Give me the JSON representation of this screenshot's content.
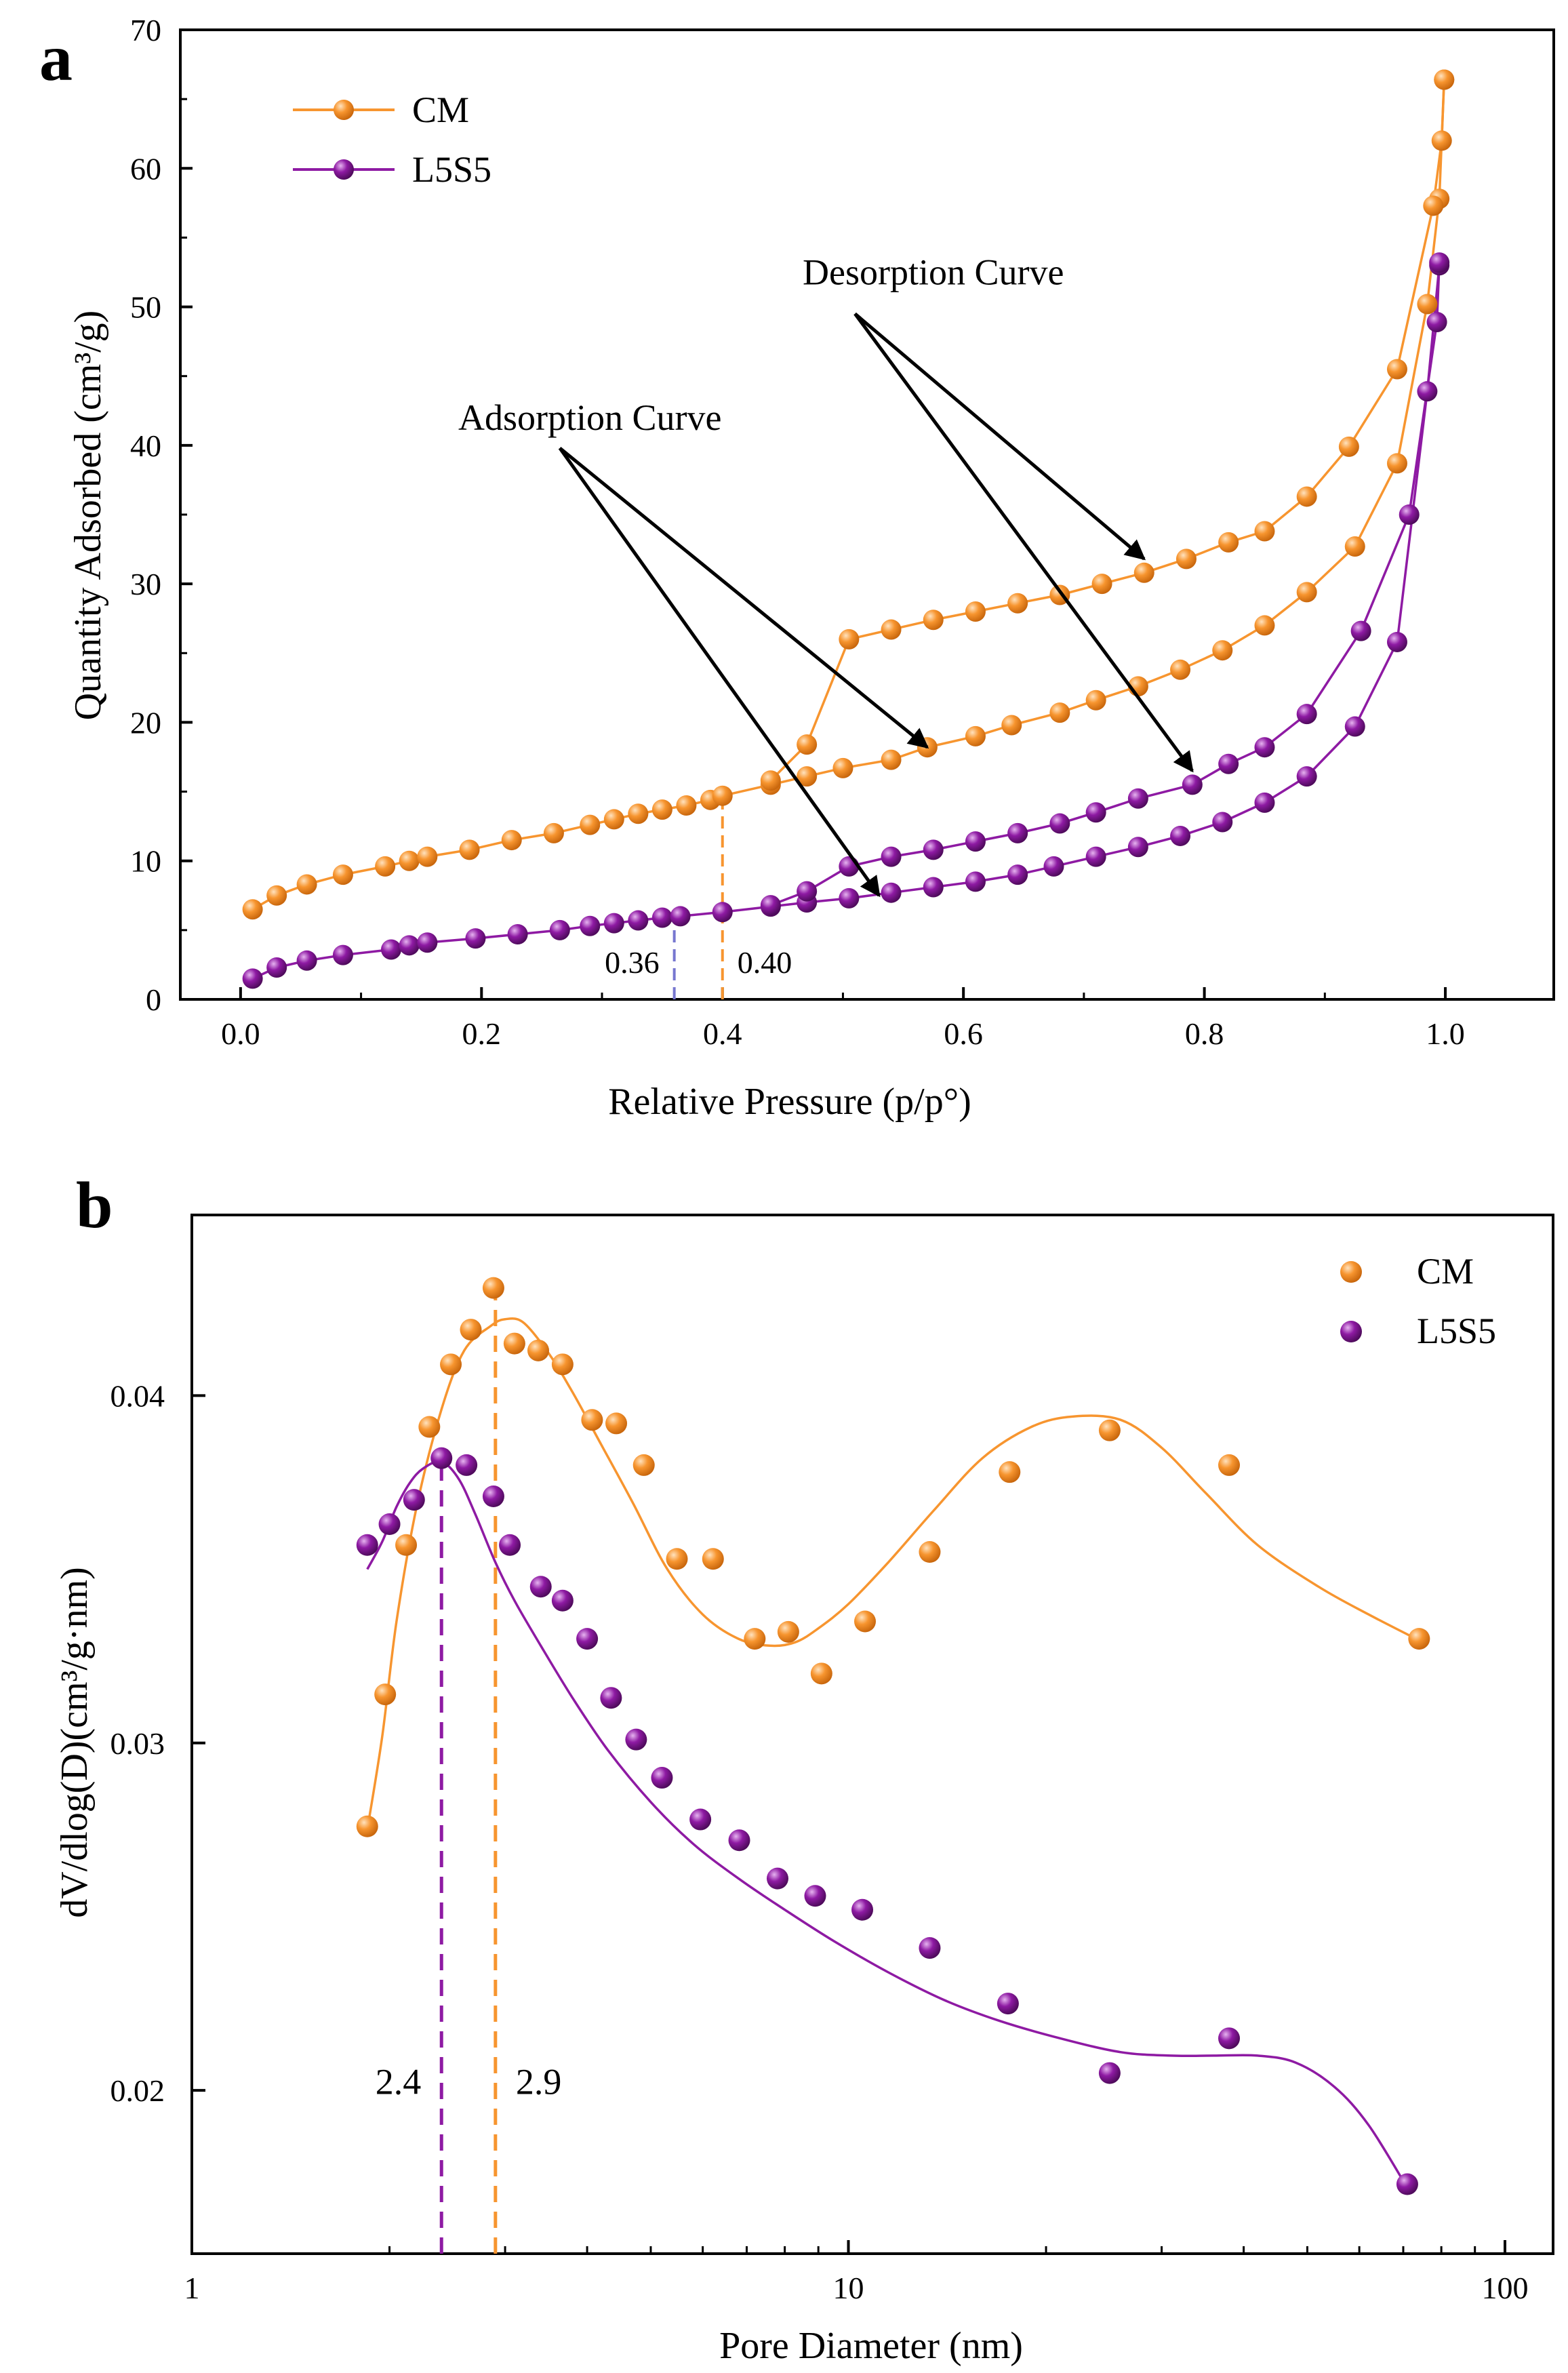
{
  "colors": {
    "CM": "#F7952F",
    "L5S5": "#8E1AA3",
    "blue_marker": "#7777D0",
    "axis": "#000000"
  },
  "chart_data": [
    {
      "panel": "a",
      "type": "line",
      "xlabel": "Relative Pressure (p/p°)",
      "ylabel": "Quantity Adsorbed (cm³/g)",
      "xlim": [
        -0.05,
        1.09
      ],
      "ylim": [
        0,
        70
      ],
      "xticks": [
        0.0,
        0.2,
        0.4,
        0.6,
        0.8,
        1.0
      ],
      "xtick_labels": [
        "0.0",
        "0.2",
        "0.4",
        "0.6",
        "0.8",
        "1.0"
      ],
      "yticks": [
        0,
        10,
        20,
        30,
        40,
        50,
        60,
        70
      ],
      "ytick_labels": [
        "0",
        "10",
        "20",
        "30",
        "40",
        "50",
        "60",
        "70"
      ],
      "legend": {
        "position": "top-left",
        "entries": [
          "CM",
          "L5S5"
        ]
      },
      "series": [
        {
          "name": "CM",
          "part": "adsorption",
          "x": [
            0.01,
            0.03,
            0.055,
            0.085,
            0.12,
            0.14,
            0.155,
            0.19,
            0.225,
            0.26,
            0.29,
            0.31,
            0.33,
            0.35,
            0.37,
            0.39,
            0.4,
            0.44,
            0.47,
            0.5,
            0.54,
            0.57,
            0.61,
            0.64,
            0.68,
            0.71,
            0.745,
            0.78,
            0.815,
            0.85,
            0.885,
            0.925,
            0.96,
            0.985,
            0.995,
            0.999
          ],
          "y": [
            6.5,
            7.5,
            8.3,
            9.0,
            9.6,
            10.0,
            10.3,
            10.8,
            11.5,
            12.0,
            12.6,
            13.0,
            13.4,
            13.7,
            14.0,
            14.4,
            14.7,
            15.5,
            16.1,
            16.7,
            17.3,
            18.2,
            19.0,
            19.8,
            20.7,
            21.6,
            22.6,
            23.8,
            25.2,
            27.0,
            29.4,
            32.7,
            38.7,
            50.2,
            57.8,
            66.4
          ]
        },
        {
          "name": "CM",
          "part": "desorption",
          "x": [
            0.999,
            0.997,
            0.99,
            0.96,
            0.92,
            0.885,
            0.85,
            0.82,
            0.785,
            0.75,
            0.715,
            0.68,
            0.645,
            0.61,
            0.575,
            0.54,
            0.505,
            0.47,
            0.44
          ],
          "y": [
            66.4,
            62.0,
            57.3,
            45.5,
            39.9,
            36.3,
            33.8,
            33.0,
            31.8,
            30.8,
            30.0,
            29.2,
            28.6,
            28.0,
            27.4,
            26.7,
            26.0,
            18.4,
            15.8
          ]
        },
        {
          "name": "L5S5",
          "part": "adsorption",
          "x": [
            0.01,
            0.03,
            0.055,
            0.085,
            0.125,
            0.14,
            0.155,
            0.195,
            0.23,
            0.265,
            0.29,
            0.31,
            0.33,
            0.35,
            0.365,
            0.4,
            0.44,
            0.47,
            0.505,
            0.54,
            0.575,
            0.61,
            0.645,
            0.675,
            0.71,
            0.745,
            0.78,
            0.815,
            0.85,
            0.885,
            0.925,
            0.96,
            0.985,
            0.995
          ],
          "y": [
            1.5,
            2.3,
            2.8,
            3.2,
            3.6,
            3.9,
            4.1,
            4.4,
            4.7,
            5.0,
            5.3,
            5.5,
            5.7,
            5.9,
            6.0,
            6.3,
            6.7,
            7.0,
            7.3,
            7.7,
            8.1,
            8.5,
            9.0,
            9.6,
            10.3,
            11.0,
            11.8,
            12.8,
            14.2,
            16.1,
            19.7,
            25.8,
            43.9,
            53.0
          ]
        },
        {
          "name": "L5S5",
          "part": "desorption",
          "x": [
            0.995,
            0.993,
            0.97,
            0.93,
            0.885,
            0.85,
            0.82,
            0.79,
            0.745,
            0.71,
            0.68,
            0.645,
            0.61,
            0.575,
            0.54,
            0.505,
            0.47,
            0.44
          ],
          "y": [
            53.2,
            48.9,
            35.0,
            26.6,
            20.6,
            18.2,
            17.0,
            15.5,
            14.5,
            13.5,
            12.7,
            12.0,
            11.4,
            10.8,
            10.3,
            9.6,
            7.8,
            6.8
          ]
        }
      ],
      "annotations": [
        {
          "text": "Desorption Curve",
          "x": 0.575,
          "y": 52.5
        },
        {
          "text": "Adsorption Curve",
          "x": 0.29,
          "y": 42.0
        }
      ],
      "arrows": [
        {
          "from": [
            0.51,
            49.5
          ],
          "to": [
            0.75,
            31.8
          ]
        },
        {
          "from": [
            0.51,
            49.5
          ],
          "to": [
            0.79,
            16.5
          ]
        },
        {
          "from": [
            0.265,
            39.8
          ],
          "to": [
            0.57,
            18.2
          ]
        },
        {
          "from": [
            0.265,
            39.8
          ],
          "to": [
            0.53,
            7.5
          ]
        }
      ],
      "ref_lines": [
        {
          "x": 0.4,
          "label": "0.40",
          "color": "CM",
          "ytop": 14.4
        },
        {
          "x": 0.36,
          "label": "0.36",
          "color": "blue",
          "ytop": 5.8
        }
      ]
    },
    {
      "panel": "b",
      "type": "scatter",
      "xscale": "log",
      "xlabel": "Pore Diameter (nm)",
      "ylabel": "dV/dlog(D)(cm³/g·nm)",
      "xlim": [
        1,
        100
      ],
      "ylim": [
        0.0153,
        0.0452
      ],
      "xticks": [
        1,
        10,
        100
      ],
      "xtick_labels": [
        "1",
        "10",
        "100"
      ],
      "yticks": [
        0.02,
        0.03,
        0.04
      ],
      "ytick_labels": [
        "0.02",
        "0.03",
        "0.04"
      ],
      "legend": {
        "position": "top-right",
        "entries": [
          "CM",
          "L5S5"
        ]
      },
      "series": [
        {
          "name": "CM",
          "x": [
            1.85,
            1.97,
            2.12,
            2.3,
            2.48,
            2.66,
            2.88,
            3.1,
            3.37,
            3.67,
            4.07,
            4.43,
            4.88,
            5.48,
            6.22,
            7.2,
            8.1,
            9.1,
            10.6,
            13.3,
            17.6,
            25.0,
            38.0,
            74.0
          ],
          "y": [
            0.0276,
            0.0314,
            0.0357,
            0.0391,
            0.0409,
            0.0419,
            0.0431,
            0.0415,
            0.0413,
            0.0409,
            0.0393,
            0.0392,
            0.038,
            0.0353,
            0.0353,
            0.033,
            0.0332,
            0.032,
            0.0335,
            0.0355,
            0.0378,
            0.039,
            0.038,
            0.033
          ]
        },
        {
          "name": "L5S5",
          "x": [
            1.85,
            2.0,
            2.18,
            2.4,
            2.62,
            2.88,
            3.05,
            3.4,
            3.67,
            4.0,
            4.35,
            4.75,
            5.2,
            5.95,
            6.82,
            7.8,
            8.9,
            10.5,
            13.3,
            17.5,
            25.0,
            38.0,
            71.0
          ],
          "y": [
            0.0357,
            0.0363,
            0.037,
            0.0382,
            0.038,
            0.0371,
            0.0357,
            0.0345,
            0.0341,
            0.033,
            0.0313,
            0.0301,
            0.029,
            0.0278,
            0.0272,
            0.0261,
            0.0256,
            0.0252,
            0.0241,
            0.0225,
            0.0205,
            0.0215,
            0.0173
          ]
        }
      ],
      "fit_curves": [
        {
          "name": "CM",
          "x": [
            1.85,
            1.95,
            2.05,
            2.2,
            2.4,
            2.6,
            2.85,
            3.0,
            3.2,
            3.5,
            3.8,
            4.2,
            4.7,
            5.3,
            6.0,
            6.8,
            7.6,
            8.3,
            9.0,
            10.0,
            11.5,
            13.5,
            16.0,
            19.0,
            22.0,
            26.0,
            30.0,
            35.0,
            42.0,
            52.0,
            62.0,
            75.0
          ],
          "y": [
            0.0275,
            0.0302,
            0.0335,
            0.0368,
            0.0396,
            0.0413,
            0.042,
            0.0422,
            0.0421,
            0.0412,
            0.0401,
            0.0386,
            0.0369,
            0.035,
            0.0337,
            0.033,
            0.0328,
            0.0329,
            0.0333,
            0.034,
            0.0352,
            0.0367,
            0.0382,
            0.0391,
            0.0394,
            0.0393,
            0.0385,
            0.0372,
            0.0357,
            0.0345,
            0.0337,
            0.0329
          ]
        },
        {
          "name": "L5S5",
          "x": [
            1.85,
            1.95,
            2.05,
            2.15,
            2.25,
            2.4,
            2.55,
            2.7,
            2.9,
            3.1,
            3.4,
            3.8,
            4.3,
            5.0,
            5.8,
            6.8,
            8.0,
            9.5,
            11.5,
            14.0,
            17.0,
            21.0,
            26.0,
            31.0,
            36.0,
            42.0,
            48.0,
            55.0,
            62.0,
            71.0
          ],
          "y": [
            0.035,
            0.0358,
            0.0368,
            0.0375,
            0.0379,
            0.0381,
            0.0376,
            0.0366,
            0.0352,
            0.0341,
            0.0328,
            0.0313,
            0.0298,
            0.0283,
            0.0271,
            0.0261,
            0.0252,
            0.0243,
            0.0234,
            0.0226,
            0.022,
            0.0215,
            0.0211,
            0.021,
            0.021,
            0.021,
            0.0208,
            0.0201,
            0.019,
            0.0172
          ]
        }
      ],
      "ref_lines": [
        {
          "x": 2.4,
          "label": "2.4",
          "color": "L5S5",
          "ytop": 0.0381
        },
        {
          "x": 2.9,
          "label": "2.9",
          "color": "CM",
          "ytop": 0.0431
        }
      ]
    }
  ]
}
